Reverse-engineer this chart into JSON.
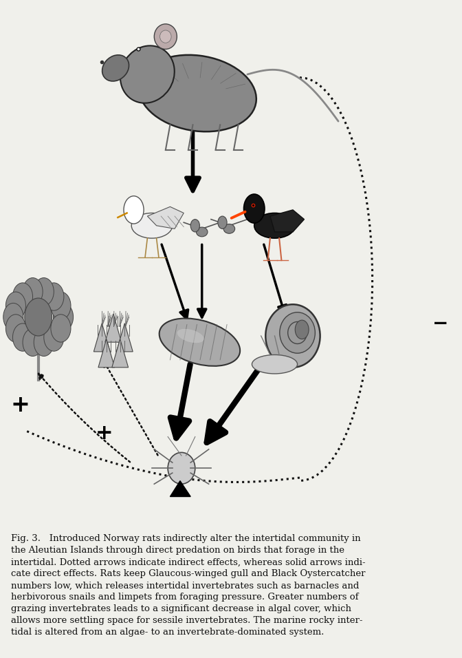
{
  "background_color": "#f0f0eb",
  "fig_width": 6.72,
  "fig_height": 9.56,
  "caption": "Fig. 3.   Introduced Norway rats indirectly alter the intertidal community in\nthe Aleutian Islands through direct predation on birds that forage in the\nintertidal. Dotted arrows indicate indirect effects, whereas solid arrows indi-\ncate direct effects. Rats keep Glaucous-winged gull and Black Oystercatcher\nnumbers low, which releases intertidal invertebrates such as barnacles and\nherbivorous snails and limpets from foraging pressure. Greater numbers of\ngrazing invertebrates leads to a significant decrease in algal cover, which\nallows more settling space for sessile invertebrates. The marine rocky inter-\ntidal is altered from an algae- to an invertebrate-dominated system.",
  "caption_fontsize": 9.5
}
